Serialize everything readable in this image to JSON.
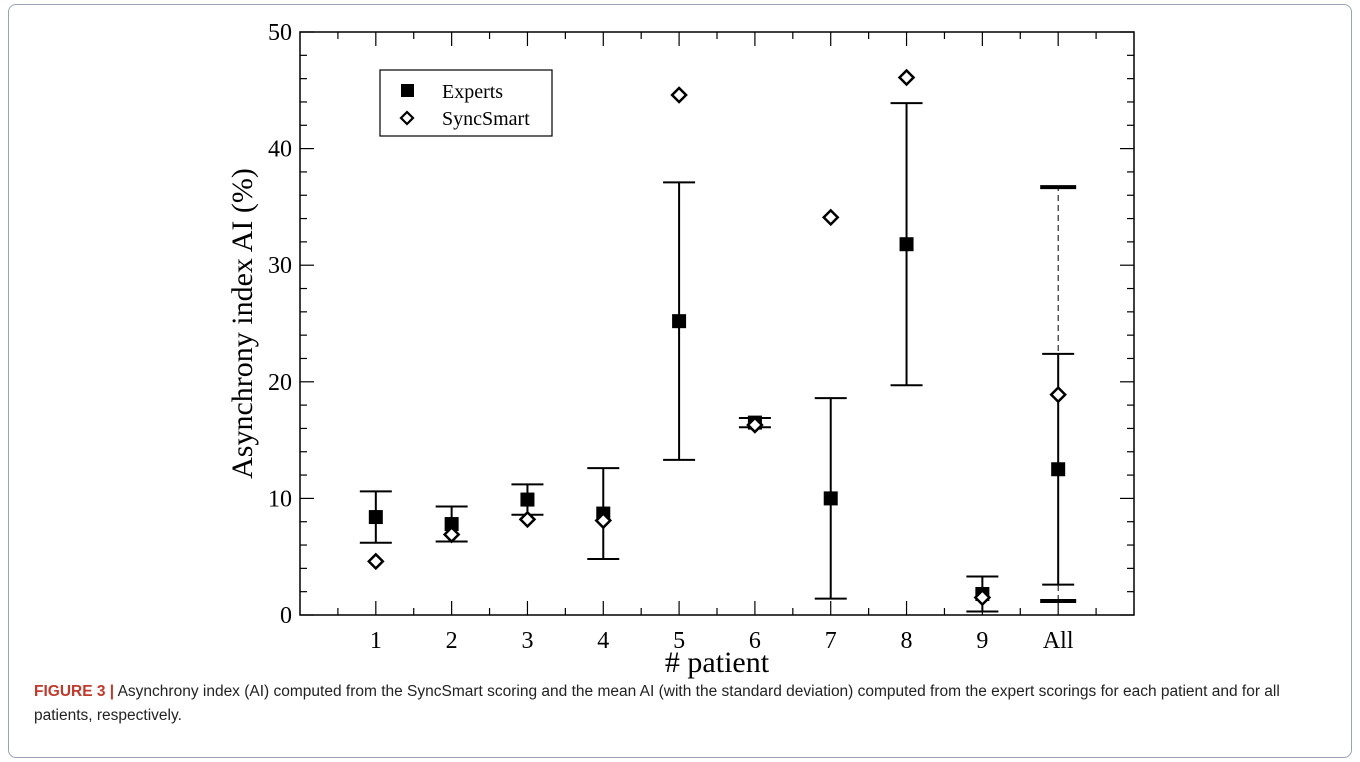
{
  "caption": {
    "label": "FIGURE 3 |",
    "text": " Asynchrony index (AI) computed from the SyncSmart scoring and the mean AI (with the standard deviation) computed from the expert scorings for each patient and for all patients, respectively."
  },
  "chart_data": {
    "type": "scatter",
    "xlabel": "# patient",
    "ylabel": "Asynchrony index AI (%)",
    "categories": [
      "1",
      "2",
      "3",
      "4",
      "5",
      "6",
      "7",
      "8",
      "9",
      "All"
    ],
    "ylim": [
      0,
      50
    ],
    "yticks": [
      0,
      10,
      20,
      30,
      40,
      50
    ],
    "grid": false,
    "legend_position": "top-left",
    "series": [
      {
        "name": "Experts",
        "marker": "filled-square",
        "color": "#000000",
        "values": [
          8.4,
          7.8,
          9.9,
          8.7,
          25.2,
          16.5,
          10.0,
          31.8,
          1.8,
          12.5
        ],
        "error_low": [
          6.2,
          6.3,
          8.6,
          4.8,
          13.3,
          16.1,
          1.4,
          19.7,
          0.3,
          2.6
        ],
        "error_high": [
          10.6,
          9.3,
          11.2,
          12.6,
          37.1,
          16.9,
          18.6,
          43.9,
          3.3,
          22.4
        ]
      },
      {
        "name": "SyncSmart",
        "marker": "open-diamond",
        "color": "#000000",
        "values": [
          4.6,
          6.9,
          8.2,
          8.1,
          44.6,
          16.3,
          34.1,
          46.1,
          1.5,
          18.9
        ]
      }
    ],
    "extra_range": {
      "category": "All",
      "style": "dashed",
      "low": 1.2,
      "high": 36.7
    }
  }
}
